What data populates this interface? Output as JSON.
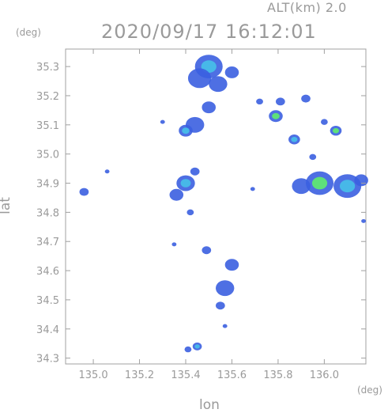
{
  "header": {
    "altitude": "ALT(km) 2.0",
    "timestamp": "2020/09/17 16:12:01"
  },
  "axes": {
    "x_unit": "(deg)",
    "y_unit": "(deg)",
    "x_label": "lon",
    "y_label": "lat"
  },
  "colors": {
    "frame": "#a0a0a0",
    "low": "#3b5fe0",
    "mid": "#47b8e8",
    "high": "#5ee07a"
  },
  "chart_data": {
    "type": "heatmap",
    "title": "2020/09/17 16:12:01",
    "xlabel": "lon",
    "ylabel": "lat",
    "xlim": [
      134.88,
      136.18
    ],
    "ylim": [
      34.28,
      35.36
    ],
    "x_ticks": [
      135.0,
      135.2,
      135.4,
      135.6,
      135.8,
      136.0
    ],
    "y_ticks": [
      34.3,
      34.4,
      34.5,
      34.6,
      34.7,
      34.8,
      34.9,
      35.0,
      35.1,
      35.2,
      35.3
    ],
    "cells": [
      {
        "lon": 135.5,
        "lat": 35.3,
        "r": 0.06,
        "level": 2
      },
      {
        "lon": 135.46,
        "lat": 35.26,
        "r": 0.05,
        "level": 1
      },
      {
        "lon": 135.54,
        "lat": 35.24,
        "r": 0.04,
        "level": 1
      },
      {
        "lon": 135.6,
        "lat": 35.28,
        "r": 0.03,
        "level": 1
      },
      {
        "lon": 135.44,
        "lat": 35.1,
        "r": 0.04,
        "level": 1
      },
      {
        "lon": 135.4,
        "lat": 35.08,
        "r": 0.03,
        "level": 2
      },
      {
        "lon": 135.5,
        "lat": 35.16,
        "r": 0.03,
        "level": 1
      },
      {
        "lon": 135.72,
        "lat": 35.18,
        "r": 0.015,
        "level": 1
      },
      {
        "lon": 135.79,
        "lat": 35.13,
        "r": 0.03,
        "level": 3
      },
      {
        "lon": 135.81,
        "lat": 35.18,
        "r": 0.02,
        "level": 1
      },
      {
        "lon": 135.92,
        "lat": 35.19,
        "r": 0.02,
        "level": 1
      },
      {
        "lon": 135.87,
        "lat": 35.05,
        "r": 0.025,
        "level": 2
      },
      {
        "lon": 136.05,
        "lat": 35.08,
        "r": 0.025,
        "level": 3
      },
      {
        "lon": 136.0,
        "lat": 35.11,
        "r": 0.015,
        "level": 1
      },
      {
        "lon": 135.95,
        "lat": 34.99,
        "r": 0.015,
        "level": 1
      },
      {
        "lon": 135.98,
        "lat": 34.9,
        "r": 0.06,
        "level": 3
      },
      {
        "lon": 135.9,
        "lat": 34.89,
        "r": 0.04,
        "level": 1
      },
      {
        "lon": 136.1,
        "lat": 34.89,
        "r": 0.06,
        "level": 2
      },
      {
        "lon": 136.16,
        "lat": 34.91,
        "r": 0.03,
        "level": 1
      },
      {
        "lon": 135.4,
        "lat": 34.9,
        "r": 0.04,
        "level": 2
      },
      {
        "lon": 135.36,
        "lat": 34.86,
        "r": 0.03,
        "level": 1
      },
      {
        "lon": 135.44,
        "lat": 34.94,
        "r": 0.02,
        "level": 1
      },
      {
        "lon": 135.42,
        "lat": 34.8,
        "r": 0.015,
        "level": 1
      },
      {
        "lon": 134.96,
        "lat": 34.87,
        "r": 0.02,
        "level": 1
      },
      {
        "lon": 135.57,
        "lat": 34.54,
        "r": 0.04,
        "level": 1
      },
      {
        "lon": 135.6,
        "lat": 34.62,
        "r": 0.03,
        "level": 1
      },
      {
        "lon": 135.55,
        "lat": 34.48,
        "r": 0.02,
        "level": 1
      },
      {
        "lon": 135.49,
        "lat": 34.67,
        "r": 0.02,
        "level": 1
      },
      {
        "lon": 135.45,
        "lat": 34.34,
        "r": 0.02,
        "level": 2
      },
      {
        "lon": 135.41,
        "lat": 34.33,
        "r": 0.015,
        "level": 1
      },
      {
        "lon": 135.57,
        "lat": 34.41,
        "r": 0.01,
        "level": 1
      },
      {
        "lon": 135.3,
        "lat": 35.11,
        "r": 0.01,
        "level": 1
      },
      {
        "lon": 135.06,
        "lat": 34.94,
        "r": 0.01,
        "level": 1
      },
      {
        "lon": 135.69,
        "lat": 34.88,
        "r": 0.01,
        "level": 1
      },
      {
        "lon": 135.35,
        "lat": 34.69,
        "r": 0.01,
        "level": 1
      },
      {
        "lon": 136.17,
        "lat": 34.77,
        "r": 0.01,
        "level": 1
      }
    ]
  }
}
